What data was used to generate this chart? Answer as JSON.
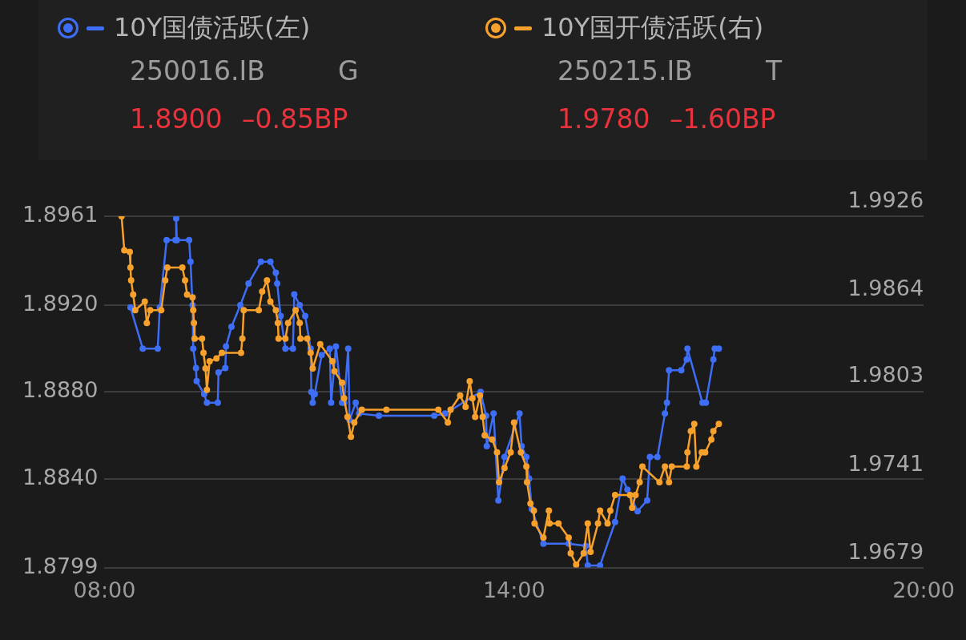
{
  "chart_data": {
    "type": "line",
    "legend": "top",
    "grid": "y",
    "marker": "circle",
    "line_style": "solid",
    "xlim": [
      8,
      20
    ],
    "xticks": [
      {
        "value": 8,
        "label": "08:00"
      },
      {
        "value": 14,
        "label": "14:00"
      },
      {
        "value": 20,
        "label": "20:00"
      }
    ],
    "ylim": [
      1.8799,
      1.8961
    ],
    "yticks": [
      {
        "value": 1.8799,
        "label": "1.8799"
      },
      {
        "value": 1.884,
        "label": "1.8840"
      },
      {
        "value": 1.888,
        "label": "1.8880"
      },
      {
        "value": 1.892,
        "label": "1.8920"
      },
      {
        "value": 1.8961,
        "label": "1.8961"
      }
    ],
    "y2lim": [
      1.9679,
      1.9926
    ],
    "y2ticks": [
      {
        "value": 1.9679,
        "label": "1.9679"
      },
      {
        "value": 1.9741,
        "label": "1.9741"
      },
      {
        "value": 1.9803,
        "label": "1.9803"
      },
      {
        "value": 1.9864,
        "label": "1.9864"
      },
      {
        "value": 1.9926,
        "label": "1.9926"
      }
    ],
    "annotations": [
      "250016.IB",
      "G",
      "1.8900",
      "–0.85BP",
      "250215.IB",
      "T",
      "1.9780",
      "–1.60BP"
    ],
    "series": [
      {
        "name": "10Y国债活跃(左)",
        "color": "#3d6ef5",
        "x": [
          8.38,
          8.56,
          8.78,
          8.81,
          8.91,
          9.04,
          9.05,
          9.06,
          9.24,
          9.26,
          9.29,
          9.3,
          9.34,
          9.35,
          9.46,
          9.5,
          9.66,
          9.67,
          9.77,
          9.78,
          9.86,
          9.99,
          10.11,
          10.29,
          10.43,
          10.51,
          10.53,
          10.58,
          10.65,
          10.76,
          10.78,
          10.86,
          10.94,
          11.02,
          11.03,
          11.05,
          11.08,
          11.18,
          11.3,
          11.32,
          11.39,
          11.48,
          11.51,
          11.57,
          11.59,
          11.68,
          11.73,
          12.02,
          12.83,
          12.99,
          13.51,
          13.59,
          13.6,
          13.7,
          13.77,
          13.86,
          14.08,
          14.11,
          14.18,
          14.22,
          14.26,
          14.43,
          14.8,
          15.05,
          15.08,
          15.26,
          15.48,
          15.59,
          15.66,
          15.81,
          15.95,
          15.99,
          16.1,
          16.21,
          16.24,
          16.27,
          16.45,
          16.53,
          16.54,
          16.76,
          16.81,
          16.92,
          16.94,
          17.0
        ],
        "values": [
          1.8919,
          1.89,
          1.89,
          1.8919,
          1.895,
          1.895,
          1.896,
          1.895,
          1.895,
          1.894,
          1.892,
          1.89,
          1.8891,
          1.8885,
          1.8879,
          1.8875,
          1.8875,
          1.8889,
          1.8891,
          1.8901,
          1.891,
          1.892,
          1.893,
          1.894,
          1.894,
          1.8935,
          1.893,
          1.8915,
          1.89,
          1.89,
          1.8925,
          1.892,
          1.8915,
          1.89,
          1.888,
          1.8875,
          1.8879,
          1.8897,
          1.89,
          1.8875,
          1.8901,
          1.8875,
          1.8875,
          1.89,
          1.8867,
          1.8875,
          1.887,
          1.8869,
          1.8869,
          1.887,
          1.888,
          1.8869,
          1.8855,
          1.887,
          1.883,
          1.885,
          1.887,
          1.8855,
          1.885,
          1.884,
          1.8826,
          1.881,
          1.881,
          1.8809,
          1.88,
          1.88,
          1.882,
          1.884,
          1.8835,
          1.8825,
          1.883,
          1.885,
          1.885,
          1.887,
          1.8875,
          1.889,
          1.889,
          1.8895,
          1.89,
          1.8875,
          1.8875,
          1.8895,
          1.89,
          1.89
        ]
      },
      {
        "name": "10Y国开债活跃(右)",
        "color": "#f7a12c",
        "axis": "y2",
        "x": [
          8.25,
          8.29,
          8.37,
          8.38,
          8.39,
          8.42,
          8.45,
          8.59,
          8.62,
          8.67,
          8.83,
          8.89,
          8.92,
          9.14,
          9.18,
          9.21,
          9.29,
          9.3,
          9.31,
          9.32,
          9.43,
          9.45,
          9.48,
          9.5,
          9.54,
          9.64,
          9.72,
          10.0,
          10.02,
          10.04,
          10.26,
          10.31,
          10.38,
          10.43,
          10.51,
          10.54,
          10.55,
          10.65,
          10.69,
          10.8,
          10.86,
          10.87,
          10.97,
          11.02,
          11.05,
          11.16,
          11.34,
          11.37,
          11.48,
          11.51,
          11.56,
          11.61,
          11.66,
          11.77,
          12.13,
          12.89,
          13.03,
          13.07,
          13.21,
          13.29,
          13.35,
          13.39,
          13.43,
          13.5,
          13.54,
          13.57,
          13.68,
          13.75,
          13.78,
          13.86,
          13.95,
          14.0,
          14.1,
          14.18,
          14.19,
          14.24,
          14.29,
          14.3,
          14.43,
          14.51,
          14.52,
          14.65,
          14.8,
          14.83,
          14.91,
          15.02,
          15.08,
          15.12,
          15.23,
          15.26,
          15.37,
          15.41,
          15.48,
          15.7,
          15.73,
          15.78,
          15.84,
          15.88,
          16.13,
          16.21,
          16.27,
          16.31,
          16.53,
          16.54,
          16.59,
          16.64,
          16.67,
          16.75,
          16.8,
          16.89,
          16.92,
          17.0
        ],
        "values": [
          1.9926,
          1.9902,
          1.9901,
          1.989,
          1.9881,
          1.9871,
          1.986,
          1.9866,
          1.9851,
          1.986,
          1.986,
          1.9881,
          1.989,
          1.989,
          1.9881,
          1.9871,
          1.9869,
          1.986,
          1.9851,
          1.984,
          1.984,
          1.983,
          1.9819,
          1.9804,
          1.9824,
          1.9826,
          1.983,
          1.983,
          1.984,
          1.986,
          1.986,
          1.9873,
          1.9881,
          1.9866,
          1.986,
          1.9851,
          1.984,
          1.984,
          1.9851,
          1.986,
          1.9851,
          1.984,
          1.984,
          1.983,
          1.9819,
          1.9836,
          1.9824,
          1.9817,
          1.9809,
          1.9798,
          1.9785,
          1.9771,
          1.9781,
          1.979,
          1.979,
          1.979,
          1.9781,
          1.979,
          1.98,
          1.9792,
          1.981,
          1.9798,
          1.9785,
          1.98,
          1.9785,
          1.9772,
          1.9769,
          1.976,
          1.9739,
          1.9749,
          1.976,
          1.9781,
          1.976,
          1.975,
          1.9739,
          1.9724,
          1.9719,
          1.971,
          1.97,
          1.9719,
          1.971,
          1.971,
          1.97,
          1.9689,
          1.9681,
          1.9689,
          1.971,
          1.969,
          1.971,
          1.9719,
          1.971,
          1.9719,
          1.973,
          1.973,
          1.9721,
          1.973,
          1.9739,
          1.975,
          1.9739,
          1.975,
          1.9739,
          1.975,
          1.975,
          1.976,
          1.9775,
          1.978,
          1.975,
          1.976,
          1.976,
          1.9769,
          1.9775,
          1.978
        ]
      }
    ]
  }
}
